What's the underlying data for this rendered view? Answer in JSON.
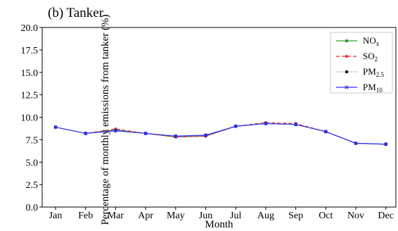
{
  "chart_data": {
    "type": "line",
    "title": "(b) Tanker",
    "xlabel": "Month",
    "ylabel": "Percentage of monthly emissions from tanker (%)",
    "ylim": [
      0.0,
      20.0
    ],
    "yticks": [
      "0.0",
      "2.5",
      "5.0",
      "7.5",
      "10.0",
      "12.5",
      "15.0",
      "17.5",
      "20.0"
    ],
    "categories": [
      "Jan",
      "Feb",
      "Mar",
      "Apr",
      "May",
      "Jun",
      "Jul",
      "Aug",
      "Sep",
      "Oct",
      "Nov",
      "Dec"
    ],
    "grid": false,
    "legend_position": "top-right",
    "series": [
      {
        "name": "NOx",
        "base": "NO",
        "sub": "x",
        "color": "#2ca02c",
        "dash": "solid",
        "marker": "square",
        "values": [
          8.9,
          8.2,
          8.6,
          8.2,
          7.8,
          7.9,
          9.0,
          9.3,
          9.2,
          8.4,
          7.1,
          7.0
        ]
      },
      {
        "name": "SO2",
        "base": "SO",
        "sub": "2",
        "color": "#e8272b",
        "dash": "dashed",
        "marker": "circle",
        "values": [
          8.9,
          8.2,
          8.7,
          8.2,
          7.8,
          7.9,
          9.0,
          9.4,
          9.3,
          8.4,
          7.1,
          7.0
        ]
      },
      {
        "name": "PM2.5",
        "base": "PM",
        "sub": "2.5",
        "color": "#999999",
        "dash": "dotted",
        "marker": "dot",
        "values": [
          8.9,
          8.2,
          8.5,
          8.2,
          7.9,
          8.0,
          9.0,
          9.3,
          9.2,
          8.4,
          7.1,
          7.0
        ]
      },
      {
        "name": "PM10",
        "base": "PM",
        "sub": "10",
        "color": "#3333ff",
        "dash": "solid",
        "marker": "x",
        "values": [
          8.9,
          8.2,
          8.5,
          8.2,
          7.9,
          8.0,
          9.0,
          9.3,
          9.2,
          8.4,
          7.1,
          7.0
        ]
      }
    ]
  }
}
